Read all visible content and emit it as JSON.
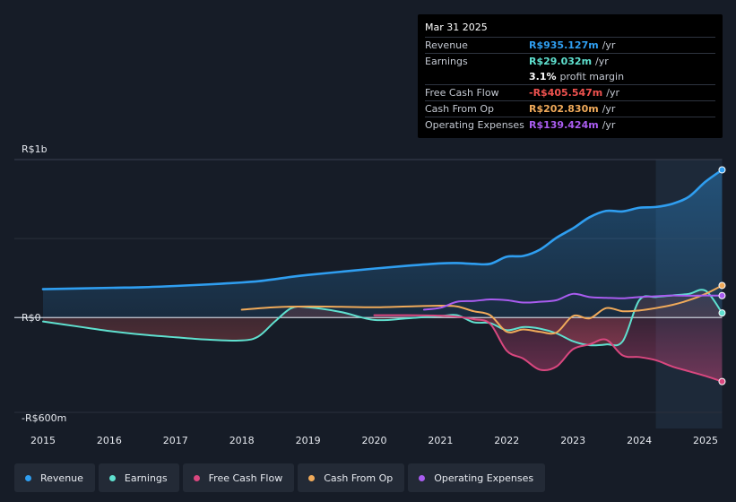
{
  "tooltip": {
    "date": "Mar 31 2025",
    "rows": [
      {
        "label": "Revenue",
        "value": "R$935.127m",
        "unit": "/yr",
        "color": "#2f9ef0"
      },
      {
        "label": "Earnings",
        "value": "R$29.032m",
        "unit": "/yr",
        "color": "#5fe0cf"
      },
      {
        "label": "",
        "value": "3.1%",
        "unit": "profit margin",
        "color": "#ffffff"
      },
      {
        "label": "Free Cash Flow",
        "value": "-R$405.547m",
        "unit": "/yr",
        "color": "#f0524f"
      },
      {
        "label": "Cash From Op",
        "value": "R$202.830m",
        "unit": "/yr",
        "color": "#f0aa5a"
      },
      {
        "label": "Operating Expenses",
        "value": "R$139.424m",
        "unit": "/yr",
        "color": "#a95cf0"
      }
    ]
  },
  "legend": [
    {
      "label": "Revenue",
      "color": "#2f9ef0"
    },
    {
      "label": "Earnings",
      "color": "#5fe0cf"
    },
    {
      "label": "Free Cash Flow",
      "color": "#d9477f"
    },
    {
      "label": "Cash From Op",
      "color": "#f0aa5a"
    },
    {
      "label": "Operating Expenses",
      "color": "#a95cf0"
    }
  ],
  "chart_data": {
    "type": "line",
    "y_axis_labels": {
      "top": "R$1b",
      "zero": "R$0",
      "bottom": "-R$600m"
    },
    "ylim": [
      -600,
      1000
    ],
    "xlim": [
      2014.75,
      2025.25
    ],
    "x_ticks": [
      2015,
      2016,
      2017,
      2018,
      2019,
      2020,
      2021,
      2022,
      2023,
      2024,
      2025
    ],
    "x_tick_labels": [
      "2015",
      "2016",
      "2017",
      "2018",
      "2019",
      "2020",
      "2021",
      "2022",
      "2023",
      "2024",
      "2025"
    ],
    "highlight_start": 2024.25,
    "series": [
      {
        "name": "Revenue",
        "color": "#2f9ef0",
        "fill": true,
        "points": [
          [
            2015,
            180
          ],
          [
            2016,
            188
          ],
          [
            2016.5,
            192
          ],
          [
            2017,
            200
          ],
          [
            2017.5,
            210
          ],
          [
            2018,
            222
          ],
          [
            2018.25,
            230
          ],
          [
            2018.5,
            243
          ],
          [
            2018.75,
            258
          ],
          [
            2019,
            270
          ],
          [
            2019.5,
            290
          ],
          [
            2020,
            310
          ],
          [
            2020.5,
            328
          ],
          [
            2021,
            343
          ],
          [
            2021.25,
            345
          ],
          [
            2021.5,
            340
          ],
          [
            2021.75,
            340
          ],
          [
            2022,
            385
          ],
          [
            2022.25,
            390
          ],
          [
            2022.5,
            430
          ],
          [
            2022.75,
            505
          ],
          [
            2023,
            565
          ],
          [
            2023.25,
            635
          ],
          [
            2023.5,
            675
          ],
          [
            2023.75,
            672
          ],
          [
            2024,
            695
          ],
          [
            2024.25,
            700
          ],
          [
            2024.5,
            720
          ],
          [
            2024.75,
            765
          ],
          [
            2025,
            860
          ],
          [
            2025.25,
            935
          ]
        ]
      },
      {
        "name": "Earnings",
        "color": "#5fe0cf",
        "fill": true,
        "points": [
          [
            2015,
            -25
          ],
          [
            2015.5,
            -55
          ],
          [
            2016,
            -85
          ],
          [
            2016.5,
            -108
          ],
          [
            2017,
            -125
          ],
          [
            2017.5,
            -140
          ],
          [
            2018,
            -145
          ],
          [
            2018.25,
            -120
          ],
          [
            2018.5,
            -25
          ],
          [
            2018.75,
            60
          ],
          [
            2019,
            65
          ],
          [
            2019.5,
            35
          ],
          [
            2020,
            -15
          ],
          [
            2020.5,
            -5
          ],
          [
            2021,
            10
          ],
          [
            2021.25,
            15
          ],
          [
            2021.5,
            -30
          ],
          [
            2021.75,
            -35
          ],
          [
            2022,
            -80
          ],
          [
            2022.25,
            -60
          ],
          [
            2022.5,
            -70
          ],
          [
            2022.75,
            -100
          ],
          [
            2023,
            -150
          ],
          [
            2023.25,
            -175
          ],
          [
            2023.5,
            -170
          ],
          [
            2023.75,
            -150
          ],
          [
            2024,
            110
          ],
          [
            2024.25,
            130
          ],
          [
            2024.5,
            140
          ],
          [
            2024.75,
            150
          ],
          [
            2025,
            170
          ],
          [
            2025.25,
            29
          ]
        ]
      },
      {
        "name": "Free Cash Flow",
        "color": "#d9477f",
        "fill": true,
        "points": [
          [
            2020,
            15
          ],
          [
            2020.5,
            15
          ],
          [
            2021,
            12
          ],
          [
            2021.25,
            5
          ],
          [
            2021.5,
            -10
          ],
          [
            2021.75,
            -40
          ],
          [
            2022,
            -210
          ],
          [
            2022.25,
            -260
          ],
          [
            2022.5,
            -330
          ],
          [
            2022.75,
            -310
          ],
          [
            2023,
            -200
          ],
          [
            2023.25,
            -170
          ],
          [
            2023.5,
            -140
          ],
          [
            2023.75,
            -240
          ],
          [
            2024,
            -250
          ],
          [
            2024.25,
            -270
          ],
          [
            2024.5,
            -310
          ],
          [
            2024.75,
            -340
          ],
          [
            2025,
            -370
          ],
          [
            2025.25,
            -405
          ]
        ]
      },
      {
        "name": "Cash From Op",
        "color": "#f0aa5a",
        "fill": false,
        "points": [
          [
            2018,
            50
          ],
          [
            2018.5,
            65
          ],
          [
            2019,
            70
          ],
          [
            2019.5,
            68
          ],
          [
            2020,
            65
          ],
          [
            2020.5,
            70
          ],
          [
            2021,
            75
          ],
          [
            2021.25,
            70
          ],
          [
            2021.5,
            40
          ],
          [
            2021.75,
            15
          ],
          [
            2022,
            -90
          ],
          [
            2022.25,
            -75
          ],
          [
            2022.5,
            -90
          ],
          [
            2022.75,
            -95
          ],
          [
            2023,
            10
          ],
          [
            2023.25,
            -5
          ],
          [
            2023.5,
            60
          ],
          [
            2023.75,
            40
          ],
          [
            2024,
            45
          ],
          [
            2024.25,
            60
          ],
          [
            2024.5,
            80
          ],
          [
            2024.75,
            110
          ],
          [
            2025,
            150
          ],
          [
            2025.25,
            203
          ]
        ]
      },
      {
        "name": "Operating Expenses",
        "color": "#a95cf0",
        "fill": false,
        "points": [
          [
            2020.75,
            50
          ],
          [
            2021,
            62
          ],
          [
            2021.25,
            100
          ],
          [
            2021.5,
            105
          ],
          [
            2021.75,
            115
          ],
          [
            2022,
            110
          ],
          [
            2022.25,
            95
          ],
          [
            2022.5,
            100
          ],
          [
            2022.75,
            110
          ],
          [
            2023,
            150
          ],
          [
            2023.25,
            130
          ],
          [
            2023.5,
            125
          ],
          [
            2023.75,
            122
          ],
          [
            2024,
            130
          ],
          [
            2024.25,
            135
          ],
          [
            2024.5,
            140
          ],
          [
            2024.75,
            138
          ],
          [
            2025,
            140
          ],
          [
            2025.25,
            139
          ]
        ]
      }
    ]
  }
}
